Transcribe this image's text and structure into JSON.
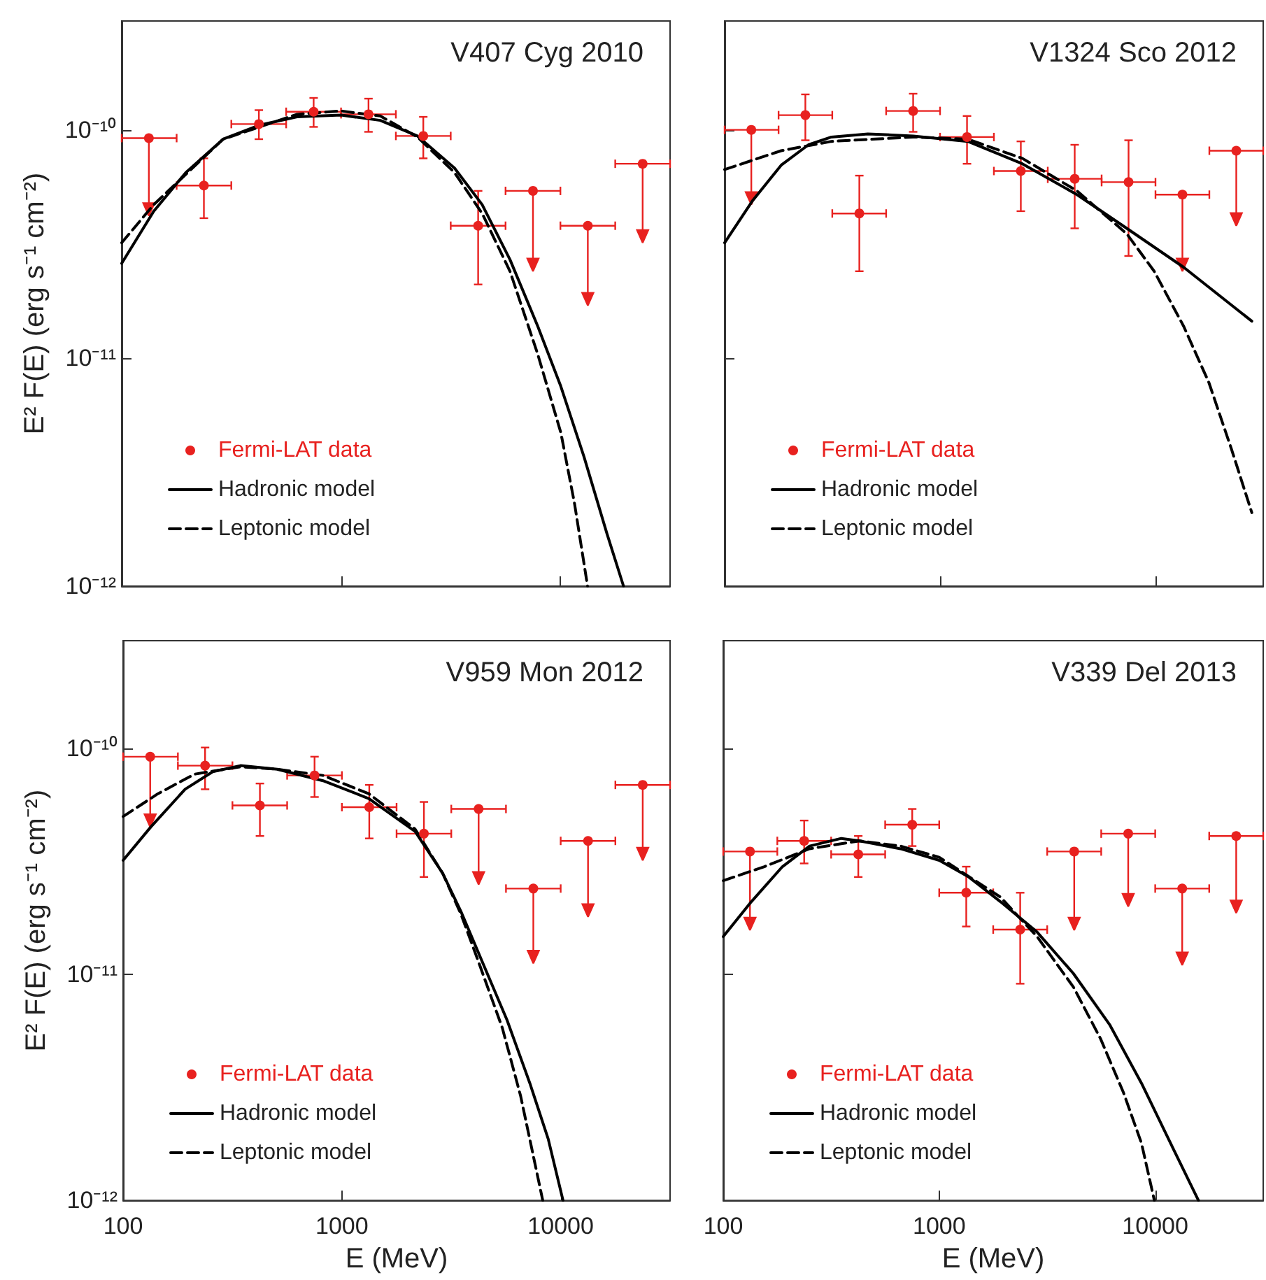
{
  "chart_data": [
    {
      "type": "scatter",
      "title": "V407 Cyg 2010",
      "ylabel": "E² F(E) (erg s⁻¹ cm⁻²)",
      "log": "xy",
      "legend": "bottom left",
      "tick_labels": "y",
      "xlim": [
        100,
        31623
      ],
      "xticks": [
        100,
        1000,
        10000
      ],
      "ylim": [
        1e-12,
        3e-10
      ],
      "yticks": [
        {
          "value": 1e-12,
          "label": "10⁻¹²"
        },
        {
          "value": 1e-11,
          "label": "10⁻¹¹"
        },
        {
          "value": 1e-10,
          "label": "10⁻¹⁰"
        }
      ],
      "x": [
        133,
        237,
        422,
        750,
        1334,
        2371,
        4217,
        7499,
        13335,
        23714
      ],
      "series": [
        {
          "name": "Fermi-LAT data",
          "marker": "circle",
          "color": "#e8211f",
          "values": [
            9.2e-11,
            5.7e-11,
            1.06e-10,
            1.2e-10,
            1.17e-10,
            9.4e-11,
            3.8e-11,
            5.4e-11,
            3.8e-11,
            7.1e-11
          ],
          "errors": [
            [
              4.2e-11,
              9.2e-11
            ],
            [
              4.1e-11,
              7.5e-11
            ],
            [
              9.1e-11,
              1.22e-10
            ],
            [
              1.03e-10,
              1.38e-10
            ],
            [
              9.8e-11,
              1.37e-10
            ],
            [
              7.5e-11,
              1.14e-10
            ],
            [
              2.1e-11,
              5.4e-11
            ],
            [
              2.4e-11,
              5.4e-11
            ],
            [
              1.7e-11,
              3.8e-11
            ],
            [
              3.2e-11,
              7.1e-11
            ]
          ],
          "xerrors": [
            [
              100,
              178
            ],
            [
              178,
              316
            ],
            [
              316,
              562
            ],
            [
              562,
              1000
            ],
            [
              1000,
              1778
            ],
            [
              1778,
              3162
            ],
            [
              3162,
              5623
            ],
            [
              5623,
              10000
            ],
            [
              10000,
              17783
            ],
            [
              17783,
              31623
            ]
          ]
        },
        {
          "name": "Hadronic model",
          "type": "line",
          "line_style": "solid",
          "color": "#000000",
          "x": [
            100,
            140,
            196,
            290,
            427,
            630,
            1000,
            1510,
            2230,
            3290,
            4400,
            5890,
            7880,
            10050,
            12800,
            16300,
            19400
          ],
          "values": [
            2.6e-11,
            4.4e-11,
            6.5e-11,
            9.1e-11,
            1.05e-10,
            1.14e-10,
            1.16e-10,
            1.1e-10,
            9.4e-11,
            6.8e-11,
            4.7e-11,
            2.7e-11,
            1.38e-11,
            7.5e-12,
            3.7e-12,
            1.7e-12,
            1e-12
          ]
        },
        {
          "name": "Leptonic model",
          "type": "line",
          "line_style": "dashed",
          "color": "#000000",
          "x": [
            100,
            140,
            290,
            630,
            1000,
            1510,
            2230,
            3290,
            4400,
            5890,
            7880,
            10050,
            11600,
            13300
          ],
          "values": [
            3.2e-11,
            4.7e-11,
            9.1e-11,
            1.17e-10,
            1.21e-10,
            1.15e-10,
            9.3e-11,
            6.5e-11,
            4.3e-11,
            2.4e-11,
            1.04e-11,
            4.7e-12,
            2.3e-12,
            1e-12
          ]
        }
      ]
    },
    {
      "type": "scatter",
      "title": "V1324 Sco 2012",
      "log": "xy",
      "legend": "bottom left",
      "tick_labels": false,
      "xlim": [
        100,
        31623
      ],
      "xticks": [
        100,
        1000,
        10000
      ],
      "ylim": [
        1e-12,
        3e-10
      ],
      "yticks": [
        1e-12,
        1e-11,
        1e-10
      ],
      "x": [
        133,
        237,
        422,
        750,
        1334,
        2371,
        4217,
        7499,
        13335,
        23714
      ],
      "series": [
        {
          "name": "Fermi-LAT data",
          "marker": "circle",
          "color": "#e8211f",
          "values": [
            1e-10,
            1.16e-10,
            4.3e-11,
            1.21e-10,
            9.3e-11,
            6.6e-11,
            6.1e-11,
            5.9e-11,
            5.2e-11,
            8.1e-11
          ],
          "errors": [
            [
              4.7e-11,
              1e-10
            ],
            [
              9e-11,
              1.43e-10
            ],
            [
              2.4e-11,
              6.3e-11
            ],
            [
              9.8e-11,
              1.44e-10
            ],
            [
              7.1e-11,
              1.15e-10
            ],
            [
              4.4e-11,
              8.9e-11
            ],
            [
              3.7e-11,
              8.6e-11
            ],
            [
              2.8e-11,
              9e-11
            ],
            [
              2.4e-11,
              5.2e-11
            ],
            [
              3.8e-11,
              8.1e-11
            ]
          ],
          "xerrors": [
            [
              100,
              178
            ],
            [
              178,
              316
            ],
            [
              316,
              562
            ],
            [
              562,
              1000
            ],
            [
              1000,
              1778
            ],
            [
              1778,
              3162
            ],
            [
              3162,
              5623
            ],
            [
              5623,
              10000
            ],
            [
              10000,
              17783
            ],
            [
              17783,
              31623
            ]
          ]
        },
        {
          "name": "Hadronic model",
          "type": "line",
          "line_style": "solid",
          "color": "#000000",
          "x": [
            100,
            135,
            183,
            245,
            313,
            462,
            751,
            1346,
            2410,
            4320,
            7360,
            13500,
            28000
          ],
          "values": [
            3.2e-11,
            4.9e-11,
            7e-11,
            8.6e-11,
            9.3e-11,
            9.6e-11,
            9.4e-11,
            8.9e-11,
            7.1e-11,
            5.2e-11,
            3.7e-11,
            2.5e-11,
            1.45e-11
          ]
        },
        {
          "name": "Leptonic model",
          "type": "line",
          "line_style": "dashed",
          "color": "#000000",
          "x": [
            100,
            183,
            313,
            751,
            1346,
            2410,
            4320,
            7360,
            9860,
            13500,
            17700,
            22500,
            28000
          ],
          "values": [
            6.7e-11,
            8.1e-11,
            8.9e-11,
            9.3e-11,
            9.1e-11,
            7.5e-11,
            5.4e-11,
            3.5e-11,
            2.4e-11,
            1.38e-11,
            7.8e-12,
            4e-12,
            2.1e-12
          ]
        }
      ]
    },
    {
      "type": "scatter",
      "title": "V959 Mon 2012",
      "xlabel": "E (MeV)",
      "ylabel": "E² F(E) (erg s⁻¹ cm⁻²)",
      "log": "xy",
      "legend": "bottom left",
      "xlim": [
        100,
        31623
      ],
      "xticks": [
        100,
        1000,
        10000
      ],
      "ylim": [
        1e-12,
        3e-10
      ],
      "yticks": [
        {
          "value": 1e-12,
          "label": "10⁻¹²"
        },
        {
          "value": 1e-11,
          "label": "10⁻¹¹"
        },
        {
          "value": 1e-10,
          "label": "10⁻¹⁰"
        }
      ],
      "x": [
        133,
        237,
        422,
        750,
        1334,
        2371,
        4217,
        7499,
        13335,
        23714
      ],
      "series": [
        {
          "name": "Fermi-LAT data",
          "marker": "circle",
          "color": "#e8211f",
          "values": [
            9.2e-11,
            8.4e-11,
            5.6e-11,
            7.6e-11,
            5.5e-11,
            4.2e-11,
            5.4e-11,
            2.4e-11,
            3.9e-11,
            6.9e-11
          ],
          "errors": [
            [
              4.5e-11,
              9.2e-11
            ],
            [
              6.6e-11,
              1.01e-10
            ],
            [
              4.1e-11,
              7e-11
            ],
            [
              6.1e-11,
              9.2e-11
            ],
            [
              4e-11,
              6.9e-11
            ],
            [
              2.7e-11,
              5.8e-11
            ],
            [
              2.5e-11,
              5.4e-11
            ],
            [
              1.12e-11,
              2.4e-11
            ],
            [
              1.8e-11,
              3.9e-11
            ],
            [
              3.2e-11,
              6.9e-11
            ]
          ],
          "xerrors": [
            [
              100,
              178
            ],
            [
              178,
              316
            ],
            [
              316,
              562
            ],
            [
              562,
              1000
            ],
            [
              1000,
              1778
            ],
            [
              1778,
              3162
            ],
            [
              3162,
              5623
            ],
            [
              5623,
              10000
            ],
            [
              10000,
              17783
            ],
            [
              17783,
              31623
            ]
          ]
        },
        {
          "name": "Hadronic model",
          "type": "line",
          "line_style": "solid",
          "color": "#000000",
          "x": [
            100,
            134,
            192,
            257,
            344,
            506,
            820,
            1330,
            2160,
            2890,
            3500,
            4250,
            5680,
            7230,
            8770,
            10250
          ],
          "values": [
            3.2e-11,
            4.5e-11,
            6.6e-11,
            7.9e-11,
            8.4e-11,
            8.1e-11,
            7.2e-11,
            6e-11,
            4.3e-11,
            2.8e-11,
            1.9e-11,
            1.22e-11,
            6.3e-12,
            3.3e-12,
            1.87e-12,
            1e-12
          ]
        },
        {
          "name": "Leptonic model",
          "type": "line",
          "line_style": "dashed",
          "color": "#000000",
          "x": [
            100,
            144,
            212,
            344,
            506,
            820,
            1330,
            2160,
            2890,
            3500,
            4250,
            5410,
            6560,
            8280
          ],
          "values": [
            5e-11,
            6.3e-11,
            7.7e-11,
            8.3e-11,
            8.1e-11,
            7.6e-11,
            6.3e-11,
            4.4e-11,
            2.8e-11,
            1.85e-11,
            1.11e-11,
            5.8e-12,
            2.9e-12,
            1e-12
          ]
        }
      ]
    },
    {
      "type": "scatter",
      "title": "V339 Del 2013",
      "xlabel": "E (MeV)",
      "log": "xy",
      "legend": "bottom left",
      "tick_labels": "x",
      "xlim": [
        100,
        31623
      ],
      "xticks": [
        100,
        1000,
        10000
      ],
      "ylim": [
        1e-12,
        3e-10
      ],
      "yticks": [
        1e-12,
        1e-11,
        1e-10
      ],
      "x": [
        133,
        237,
        422,
        750,
        1334,
        2371,
        4217,
        7499,
        13335,
        23714
      ],
      "series": [
        {
          "name": "Fermi-LAT data",
          "marker": "circle",
          "color": "#e8211f",
          "values": [
            3.5e-11,
            3.9e-11,
            3.4e-11,
            4.6e-11,
            2.3e-11,
            1.58e-11,
            3.5e-11,
            4.2e-11,
            2.4e-11,
            4.1e-11
          ],
          "errors": [
            [
              1.57e-11,
              3.5e-11
            ],
            [
              3.1e-11,
              4.8e-11
            ],
            [
              2.7e-11,
              4.1e-11
            ],
            [
              3.7e-11,
              5.4e-11
            ],
            [
              1.63e-11,
              3e-11
            ],
            [
              9.1e-12,
              2.3e-11
            ],
            [
              1.57e-11,
              3.5e-11
            ],
            [
              2e-11,
              4.2e-11
            ],
            [
              1.1e-11,
              2.4e-11
            ],
            [
              1.87e-11,
              4.1e-11
            ]
          ],
          "xerrors": [
            [
              100,
              178
            ],
            [
              178,
              316
            ],
            [
              316,
              562
            ],
            [
              562,
              1000
            ],
            [
              1000,
              1778
            ],
            [
              1778,
              3162
            ],
            [
              3162,
              5623
            ],
            [
              5623,
              10000
            ],
            [
              10000,
              17783
            ],
            [
              17783,
              31623
            ]
          ]
        },
        {
          "name": "Hadronic model",
          "type": "line",
          "line_style": "solid",
          "color": "#000000",
          "x": [
            100,
            135,
            188,
            251,
            352,
            428,
            662,
            1000,
            1370,
            1920,
            2840,
            4180,
            6150,
            8640,
            12100,
            15850
          ],
          "values": [
            1.47e-11,
            2.1e-11,
            3e-11,
            3.7e-11,
            4e-11,
            3.9e-11,
            3.6e-11,
            3.2e-11,
            2.7e-11,
            2.1e-11,
            1.54e-11,
            1.01e-11,
            6e-12,
            3.3e-12,
            1.7e-12,
            1e-12
          ]
        },
        {
          "name": "Leptonic model",
          "type": "line",
          "line_style": "dashed",
          "color": "#000000",
          "x": [
            100,
            155,
            251,
            428,
            662,
            1000,
            1920,
            2840,
            4180,
            5580,
            7130,
            8640,
            9910
          ],
          "values": [
            2.6e-11,
            3e-11,
            3.6e-11,
            3.9e-11,
            3.7e-11,
            3.3e-11,
            2.2e-11,
            1.47e-11,
            8.8e-12,
            5.2e-12,
            3e-12,
            1.79e-12,
            1e-12
          ]
        }
      ]
    }
  ]
}
